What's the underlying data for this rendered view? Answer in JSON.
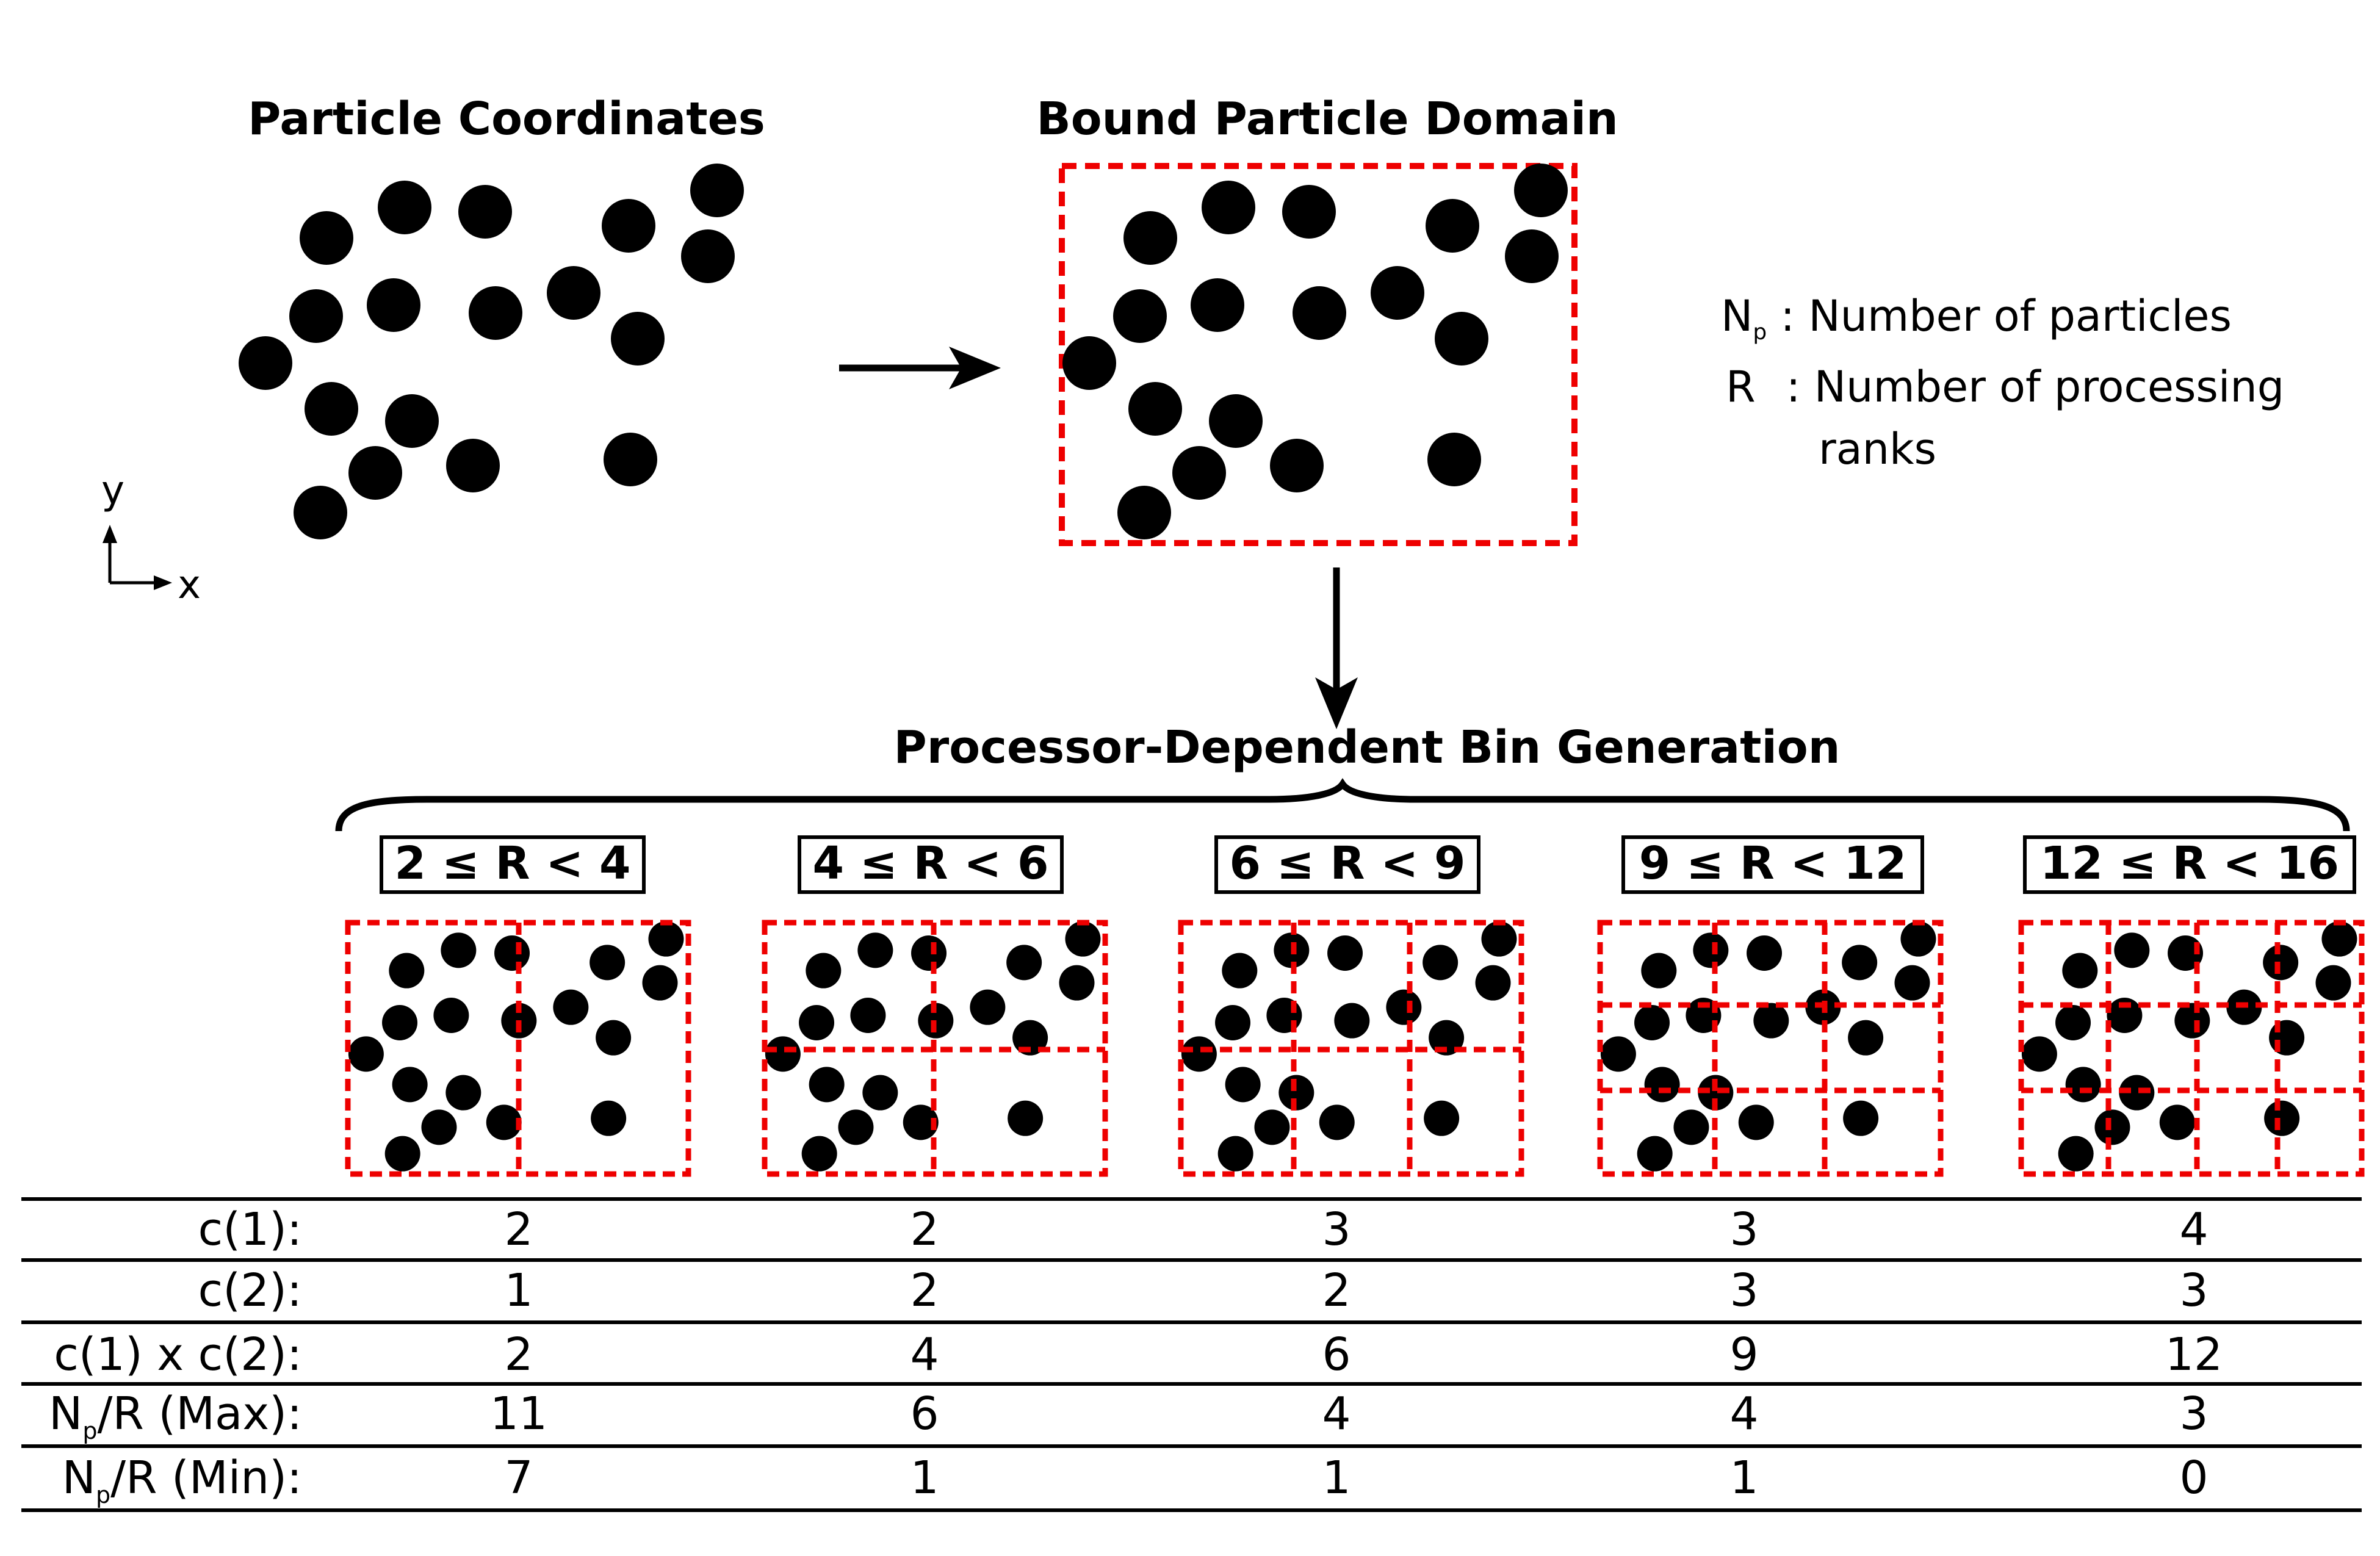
{
  "titles": {
    "coordinates": "Particle Coordinates",
    "domain": "Bound Particle Domain",
    "bins": "Processor-Dependent Bin Generation"
  },
  "axes": {
    "y": "y",
    "x": "x"
  },
  "legend": {
    "np_main": "N",
    "np_sub": "p",
    "np_desc": " : Number of particles",
    "r_sym": "R",
    "r_desc_1": " : Number of processing",
    "r_desc_2": "ranks"
  },
  "cases": [
    {
      "label": "2 ≤ R < 4",
      "c1": "2",
      "c2": "1",
      "prod": "2",
      "max": "11",
      "min": "7"
    },
    {
      "label": "4 ≤ R < 6",
      "c1": "2",
      "c2": "2",
      "prod": "4",
      "max": "6",
      "min": "1"
    },
    {
      "label": "6 ≤ R < 9",
      "c1": "3",
      "c2": "2",
      "prod": "6",
      "max": "4",
      "min": "1"
    },
    {
      "label": "9 ≤ R < 12",
      "c1": "3",
      "c2": "3",
      "prod": "9",
      "max": "4",
      "min": "1"
    },
    {
      "label": "12 ≤ R < 16",
      "c1": "4",
      "c2": "3",
      "prod": "12",
      "max": "3",
      "min": "0"
    }
  ],
  "row_labels": {
    "c1": "c(1):",
    "c2": "c(2):",
    "prod": "c(1) x c(2):",
    "max_pre": "N",
    "max_sub": "p",
    "max_post": "/R (Max):",
    "min_pre": "N",
    "min_sub": "p",
    "min_post": "/R (Min):"
  },
  "colors": {
    "ink": "#000000",
    "boundary": "#ee0000"
  }
}
